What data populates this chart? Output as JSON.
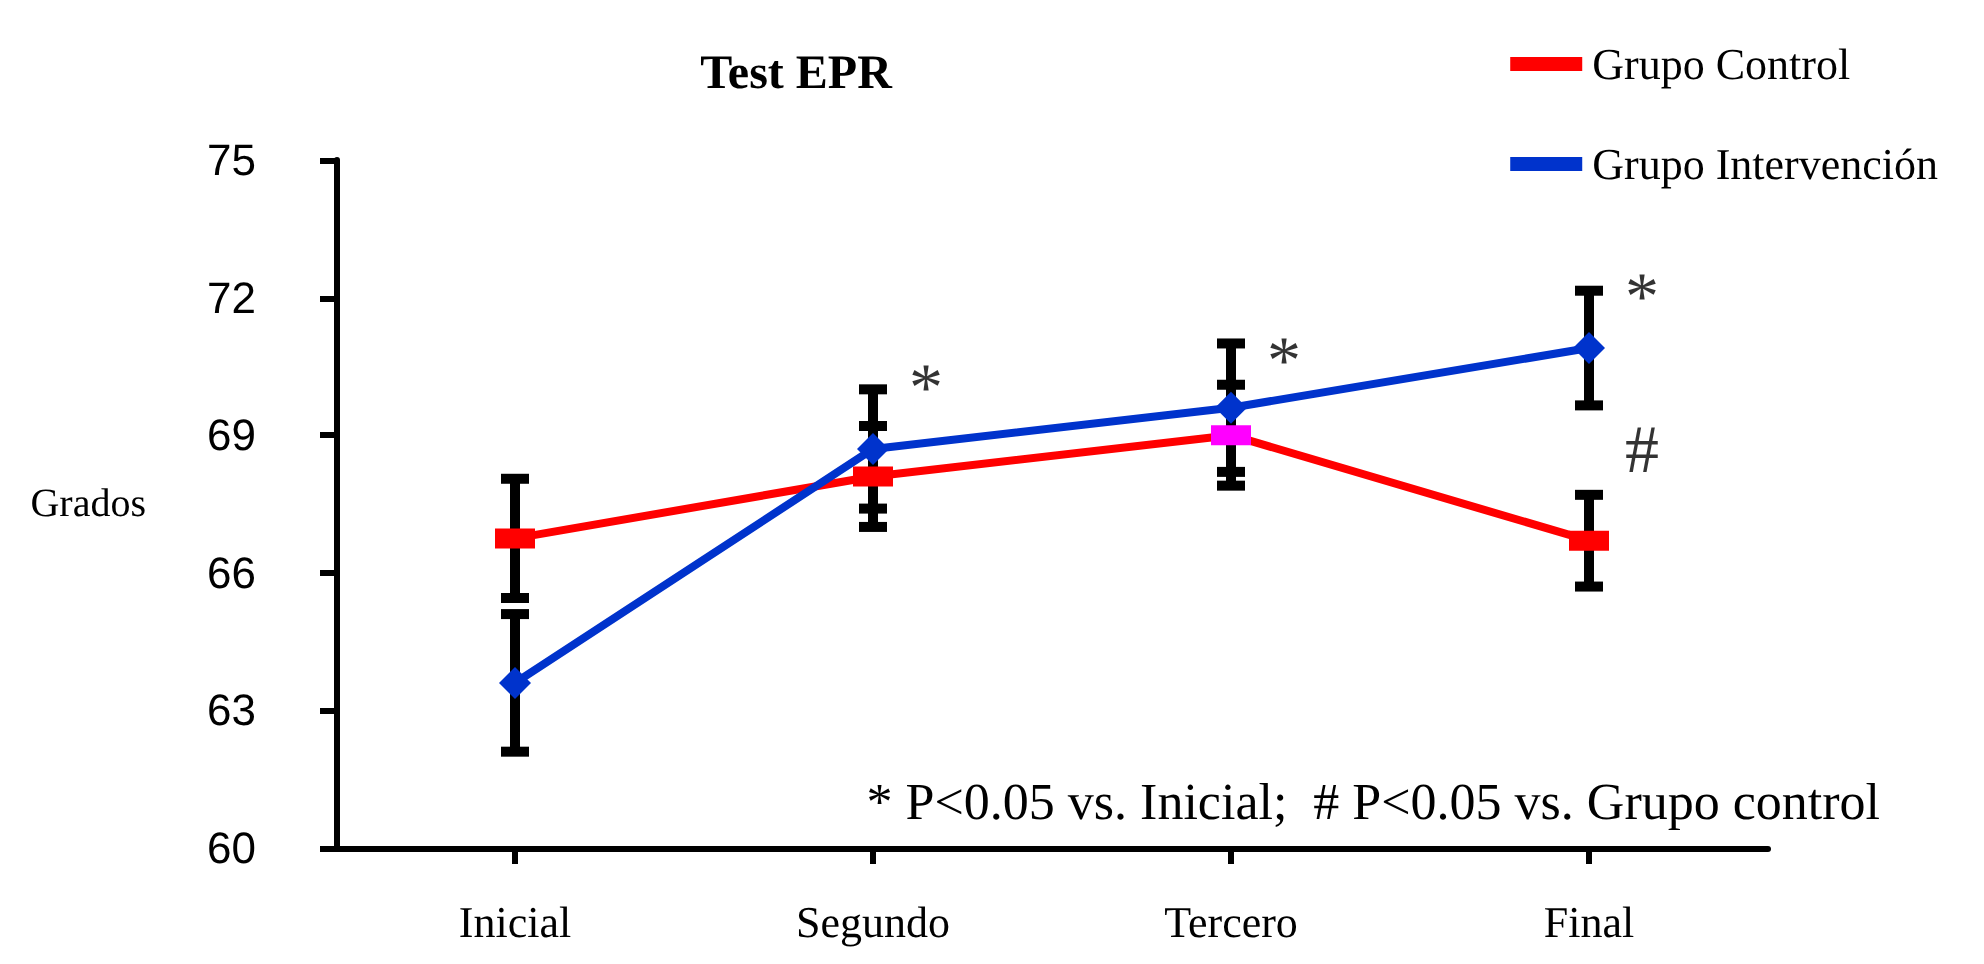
{
  "chart_data": {
    "type": "line",
    "title": "Test EPR",
    "ylabel": "Grados",
    "categories": [
      "Inicial",
      "Segundo",
      "Tercero",
      "Final"
    ],
    "series": [
      {
        "name": "Grupo Control",
        "color": "#ff0000",
        "colors": [
          "#ff0000",
          "#ff0000",
          "#ff00ff",
          "#ff0000"
        ],
        "marker": "square",
        "values": [
          66.75,
          68.1,
          69.0,
          66.7
        ],
        "errors": [
          1.3,
          1.1,
          1.1,
          1.0
        ]
      },
      {
        "name": "Grupo Intervención",
        "color": "#0033cc",
        "marker": "diamond",
        "values": [
          63.6,
          68.7,
          69.6,
          70.9
        ],
        "errors": [
          1.5,
          1.3,
          1.4,
          1.25
        ]
      }
    ],
    "ylim": [
      60,
      75
    ],
    "yticks": [
      60,
      63,
      66,
      69,
      72,
      75
    ],
    "grid": false,
    "legend": "top right",
    "annotations": [
      {
        "text": "*",
        "x": "Segundo",
        "y": 70.0
      },
      {
        "text": "*",
        "x": "Tercero",
        "y": 70.6
      },
      {
        "text": "*",
        "x": "Final",
        "y": 72.0
      },
      {
        "text": "#",
        "x": "Final",
        "y": 66.7
      },
      "* P<0.05 vs. Inicial;  # P<0.05 vs. Grupo control"
    ]
  }
}
